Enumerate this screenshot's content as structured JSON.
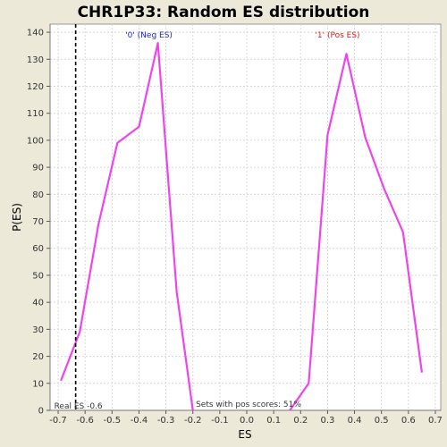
{
  "chart_data": {
    "type": "line",
    "title": "CHR1P33: Random ES distribution",
    "xlabel": "ES",
    "ylabel": "P(ES)",
    "xlim": [
      -0.73,
      0.72
    ],
    "ylim": [
      0,
      143
    ],
    "xticks": [
      -0.7,
      -0.6,
      -0.5,
      -0.4,
      -0.3,
      -0.2,
      -0.1,
      0.0,
      0.1,
      0.2,
      0.3,
      0.4,
      0.5,
      0.6,
      0.7
    ],
    "xtick_labels": [
      "-0.7",
      "-0.6",
      "-0.5",
      "-0.4",
      "-0.3",
      "-0.2",
      "-0.1",
      "0.0",
      "0.1",
      "0.2",
      "0.3",
      "0.4",
      "0.5",
      "0.6",
      "0.7"
    ],
    "yticks": [
      0,
      10,
      20,
      30,
      40,
      50,
      60,
      70,
      80,
      90,
      100,
      110,
      120,
      130,
      140
    ],
    "ytick_labels": [
      "0",
      "10",
      "20",
      "30",
      "40",
      "50",
      "60",
      "70",
      "80",
      "90",
      "100",
      "110",
      "120",
      "130",
      "140"
    ],
    "grid": true,
    "series": [
      {
        "name": "'0' (Neg ES)",
        "color": "#ee44ee",
        "x": [
          -0.69,
          -0.62,
          -0.55,
          -0.48,
          -0.4,
          -0.33,
          -0.26,
          -0.2
        ],
        "y": [
          11,
          29,
          69,
          99,
          105,
          136,
          44,
          0
        ]
      },
      {
        "name": "'1' (Pos ES)",
        "color": "#ee44ee",
        "x": [
          0.16,
          0.23,
          0.3,
          0.37,
          0.44,
          0.51,
          0.58,
          0.65
        ],
        "y": [
          0,
          10,
          102,
          132,
          101,
          82,
          66,
          14
        ]
      }
    ],
    "series_label_colors": [
      "#2222cc",
      "#cc2222"
    ],
    "annotations": {
      "real_es_value": -0.635,
      "real_es_label": "Real ES -0.6",
      "pos_scores_label": "Sets with pos scores: 51%"
    }
  }
}
